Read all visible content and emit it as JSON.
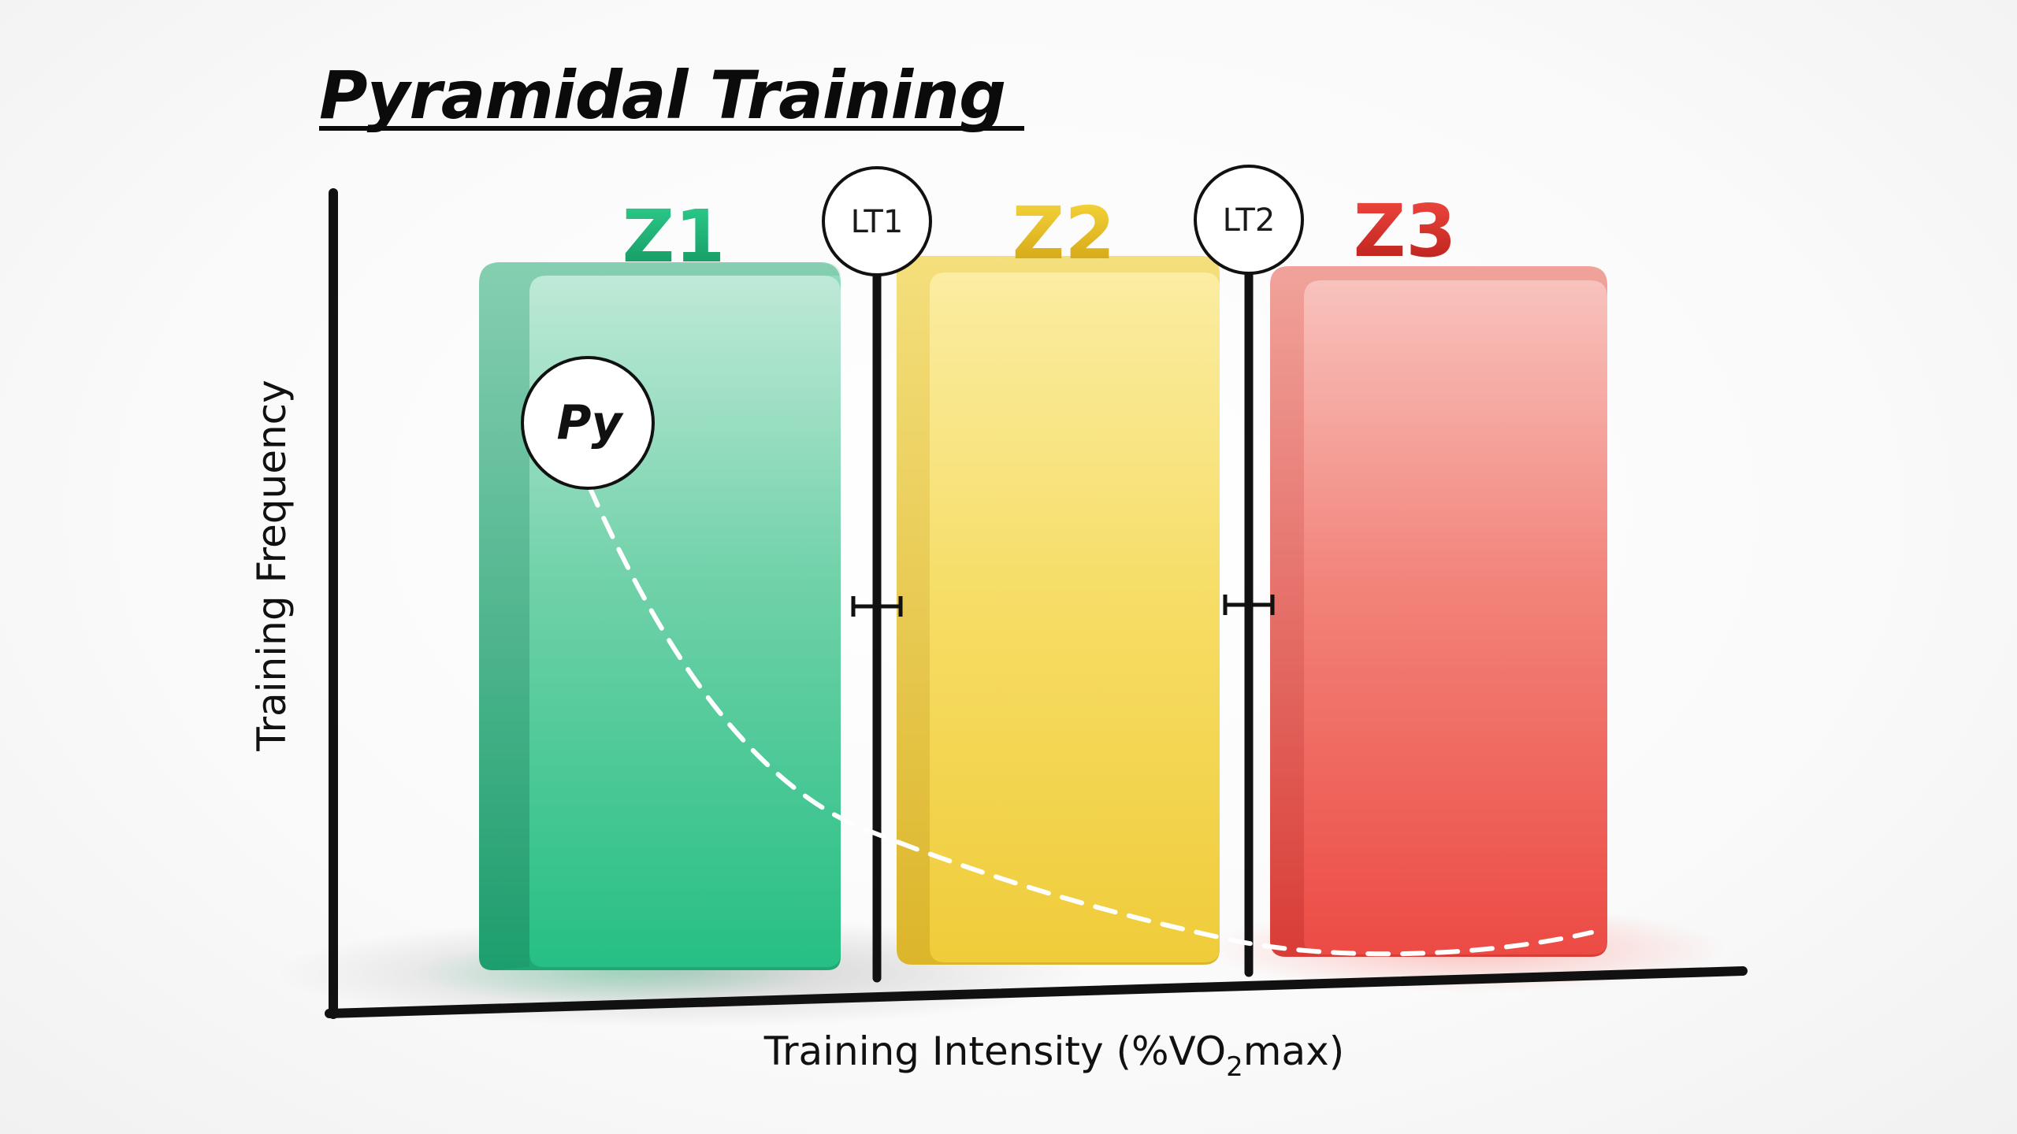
{
  "title": "Pyramidal Training",
  "axes": {
    "x_label_prefix": "Training Intensity (%VO",
    "x_label_subscript": "2",
    "x_label_suffix": "max)",
    "y_label": "Training Frequency"
  },
  "zones": [
    {
      "label": "Z1",
      "color": "#2bbf85"
    },
    {
      "label": "Z2",
      "color": "#f2cf3a"
    },
    {
      "label": "Z3",
      "color": "#ee4b45"
    }
  ],
  "thresholds": [
    {
      "label": "LT1"
    },
    {
      "label": "LT2"
    }
  ],
  "distribution": {
    "label": "Py",
    "curve_style": "dashed"
  }
}
